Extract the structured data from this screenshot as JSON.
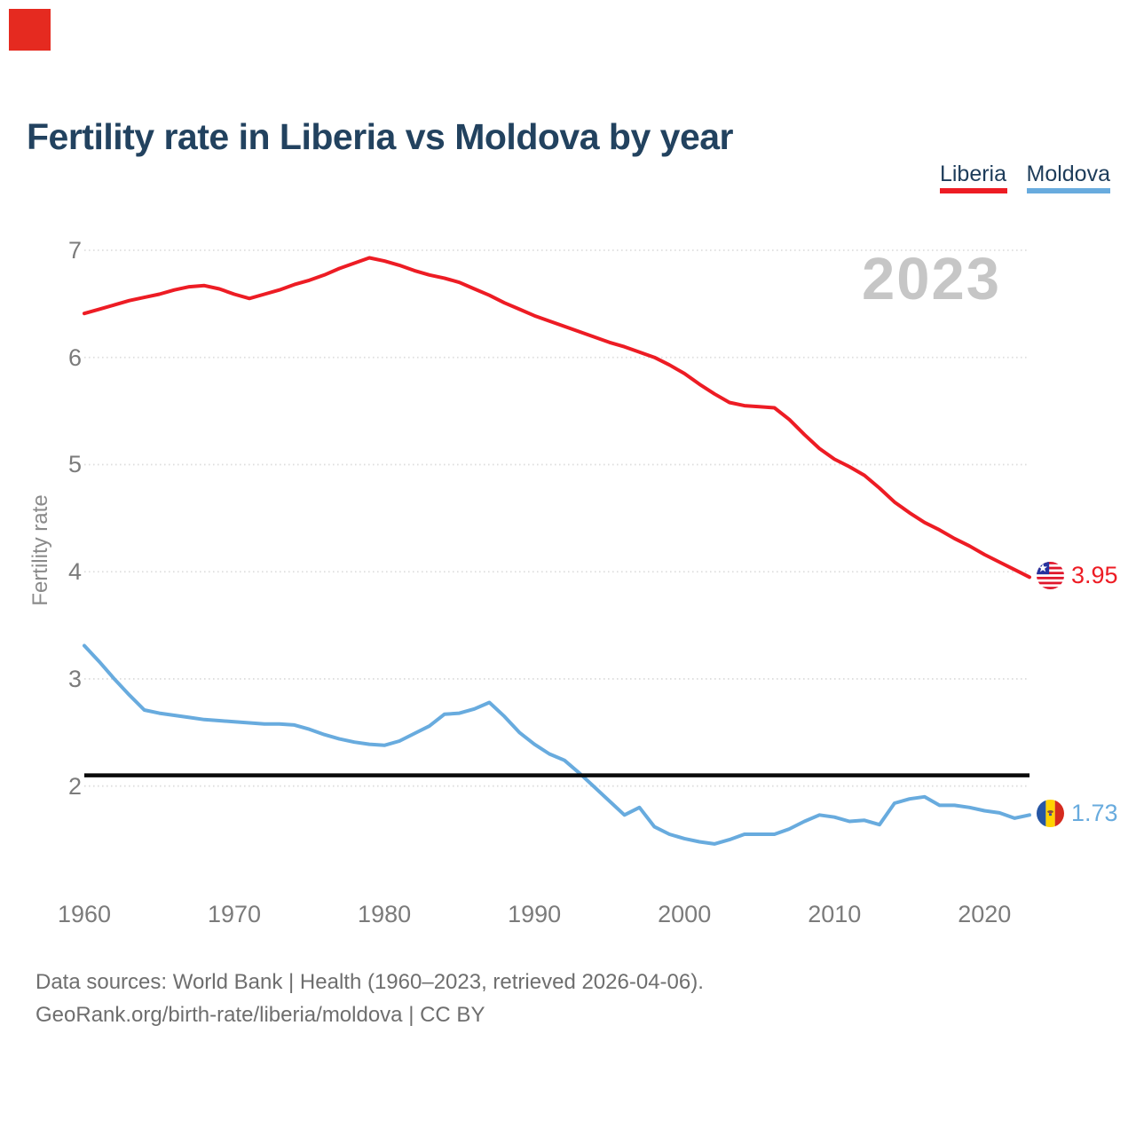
{
  "brand": {
    "logo_color": "#e52a20"
  },
  "header": {
    "title": "Fertility rate in Liberia vs Moldova by year"
  },
  "legend": {
    "items": [
      {
        "label": "Liberia",
        "color": "#ed1c24"
      },
      {
        "label": "Moldova",
        "color": "#68abde"
      }
    ]
  },
  "chart_data": {
    "type": "line",
    "title": "Fertility rate in Liberia vs Moldova by year",
    "xlabel": "",
    "ylabel": "Fertility rate",
    "watermark": "2023",
    "grid": true,
    "legend_position": "top-right",
    "xlim": [
      1957.8,
      2027
    ],
    "ylim": [
      1.3,
      7.1
    ],
    "yticks": [
      2,
      3,
      4,
      5,
      6,
      7
    ],
    "xticks": [
      1960,
      1970,
      1980,
      1990,
      2000,
      2010,
      2020
    ],
    "reference_line": {
      "value": 2.1,
      "color": "#0a0a0a",
      "label": ""
    },
    "x": [
      1960,
      1961,
      1962,
      1963,
      1964,
      1965,
      1966,
      1967,
      1968,
      1969,
      1970,
      1971,
      1972,
      1973,
      1974,
      1975,
      1976,
      1977,
      1978,
      1979,
      1980,
      1981,
      1982,
      1983,
      1984,
      1985,
      1986,
      1987,
      1988,
      1989,
      1990,
      1991,
      1992,
      1993,
      1994,
      1995,
      1996,
      1997,
      1998,
      1999,
      2000,
      2001,
      2002,
      2003,
      2004,
      2005,
      2006,
      2007,
      2008,
      2009,
      2010,
      2011,
      2012,
      2013,
      2014,
      2015,
      2016,
      2017,
      2018,
      2019,
      2020,
      2021,
      2022,
      2023
    ],
    "series": [
      {
        "name": "Liberia",
        "color": "#ed1c24",
        "end_label": "3.95",
        "values": [
          6.41,
          6.45,
          6.49,
          6.53,
          6.56,
          6.59,
          6.63,
          6.66,
          6.67,
          6.64,
          6.59,
          6.55,
          6.59,
          6.63,
          6.68,
          6.72,
          6.77,
          6.83,
          6.88,
          6.93,
          6.9,
          6.86,
          6.81,
          6.77,
          6.74,
          6.7,
          6.64,
          6.58,
          6.51,
          6.45,
          6.39,
          6.34,
          6.29,
          6.24,
          6.19,
          6.14,
          6.1,
          6.05,
          6.0,
          5.93,
          5.85,
          5.75,
          5.66,
          5.58,
          5.55,
          5.54,
          5.53,
          5.42,
          5.28,
          5.15,
          5.05,
          4.98,
          4.9,
          4.78,
          4.65,
          4.55,
          4.46,
          4.39,
          4.31,
          4.24,
          4.16,
          4.09,
          4.02,
          3.95
        ]
      },
      {
        "name": "Moldova",
        "color": "#68abde",
        "end_label": "1.73",
        "values": [
          3.31,
          3.16,
          3.0,
          2.85,
          2.71,
          2.68,
          2.66,
          2.64,
          2.62,
          2.61,
          2.6,
          2.59,
          2.58,
          2.58,
          2.57,
          2.53,
          2.48,
          2.44,
          2.41,
          2.39,
          2.38,
          2.42,
          2.49,
          2.56,
          2.67,
          2.68,
          2.72,
          2.78,
          2.65,
          2.5,
          2.39,
          2.3,
          2.24,
          2.12,
          1.99,
          1.86,
          1.73,
          1.8,
          1.62,
          1.55,
          1.51,
          1.48,
          1.46,
          1.5,
          1.55,
          1.55,
          1.55,
          1.6,
          1.67,
          1.73,
          1.71,
          1.67,
          1.68,
          1.64,
          1.84,
          1.88,
          1.9,
          1.82,
          1.82,
          1.8,
          1.77,
          1.75,
          1.7,
          1.73
        ]
      }
    ]
  },
  "footer": {
    "line1": "Data sources: World Bank | Health (1960–2023, retrieved 2026-04-06).",
    "line2": "GeoRank.org/birth-rate/liberia/moldova | CC BY"
  }
}
